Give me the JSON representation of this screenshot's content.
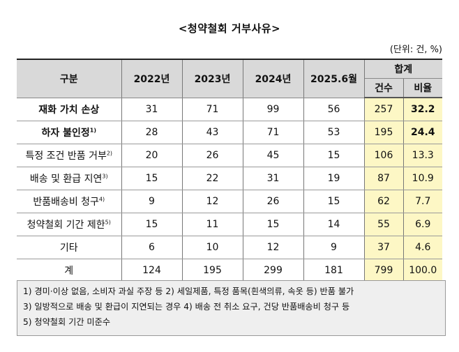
{
  "title": "<청약철회 거부사유>",
  "unit": "(단위: 건, %)",
  "headers": {
    "category": "구분",
    "years": [
      "2022년",
      "2023년",
      "2024년",
      "2025.6월"
    ],
    "total_group": "합계",
    "count": "건수",
    "ratio": "비율"
  },
  "rows": [
    {
      "label": "재화 가치 손상",
      "sup": "",
      "v2022": "31",
      "v2023": "71",
      "v2024": "99",
      "v2025": "56",
      "count": "257",
      "ratio": "32.2",
      "bold": true
    },
    {
      "label": "하자 불인정",
      "sup": "1)",
      "v2022": "28",
      "v2023": "43",
      "v2024": "71",
      "v2025": "53",
      "count": "195",
      "ratio": "24.4",
      "bold": true
    },
    {
      "label": "특정 조건 반품 거부",
      "sup": "2)",
      "v2022": "20",
      "v2023": "26",
      "v2024": "45",
      "v2025": "15",
      "count": "106",
      "ratio": "13.3",
      "bold": false
    },
    {
      "label": "배송 및 환급 지연",
      "sup": "3)",
      "v2022": "15",
      "v2023": "22",
      "v2024": "31",
      "v2025": "19",
      "count": "87",
      "ratio": "10.9",
      "bold": false
    },
    {
      "label": "반품배송비 청구",
      "sup": "4)",
      "v2022": "9",
      "v2023": "12",
      "v2024": "26",
      "v2025": "15",
      "count": "62",
      "ratio": "7.7",
      "bold": false
    },
    {
      "label": "청약철회 기간 제한",
      "sup": "5)",
      "v2022": "15",
      "v2023": "11",
      "v2024": "15",
      "v2025": "14",
      "count": "55",
      "ratio": "6.9",
      "bold": false
    },
    {
      "label": "기타",
      "sup": "",
      "v2022": "6",
      "v2023": "10",
      "v2024": "12",
      "v2025": "9",
      "count": "37",
      "ratio": "4.6",
      "bold": false
    },
    {
      "label": "계",
      "sup": "",
      "v2022": "124",
      "v2023": "195",
      "v2024": "299",
      "v2025": "181",
      "count": "799",
      "ratio": "100.0",
      "bold": false
    }
  ],
  "notes": [
    "1) 경미·이상 없음, 소비자 과실 주장 등   2) 세일제품, 특정 품목(흰색의류, 속옷 등) 반품 불가",
    "3) 일방적으로 배송 및 환급이 지연되는 경우   4) 배송 전 취소 요구, 건당 반품배송비 청구 등",
    "5) 청약철회 기간 미준수"
  ],
  "colors": {
    "header_bg": "#d9d9d9",
    "highlight_bg": "#fdf7c5",
    "notes_bg": "#efefef"
  }
}
